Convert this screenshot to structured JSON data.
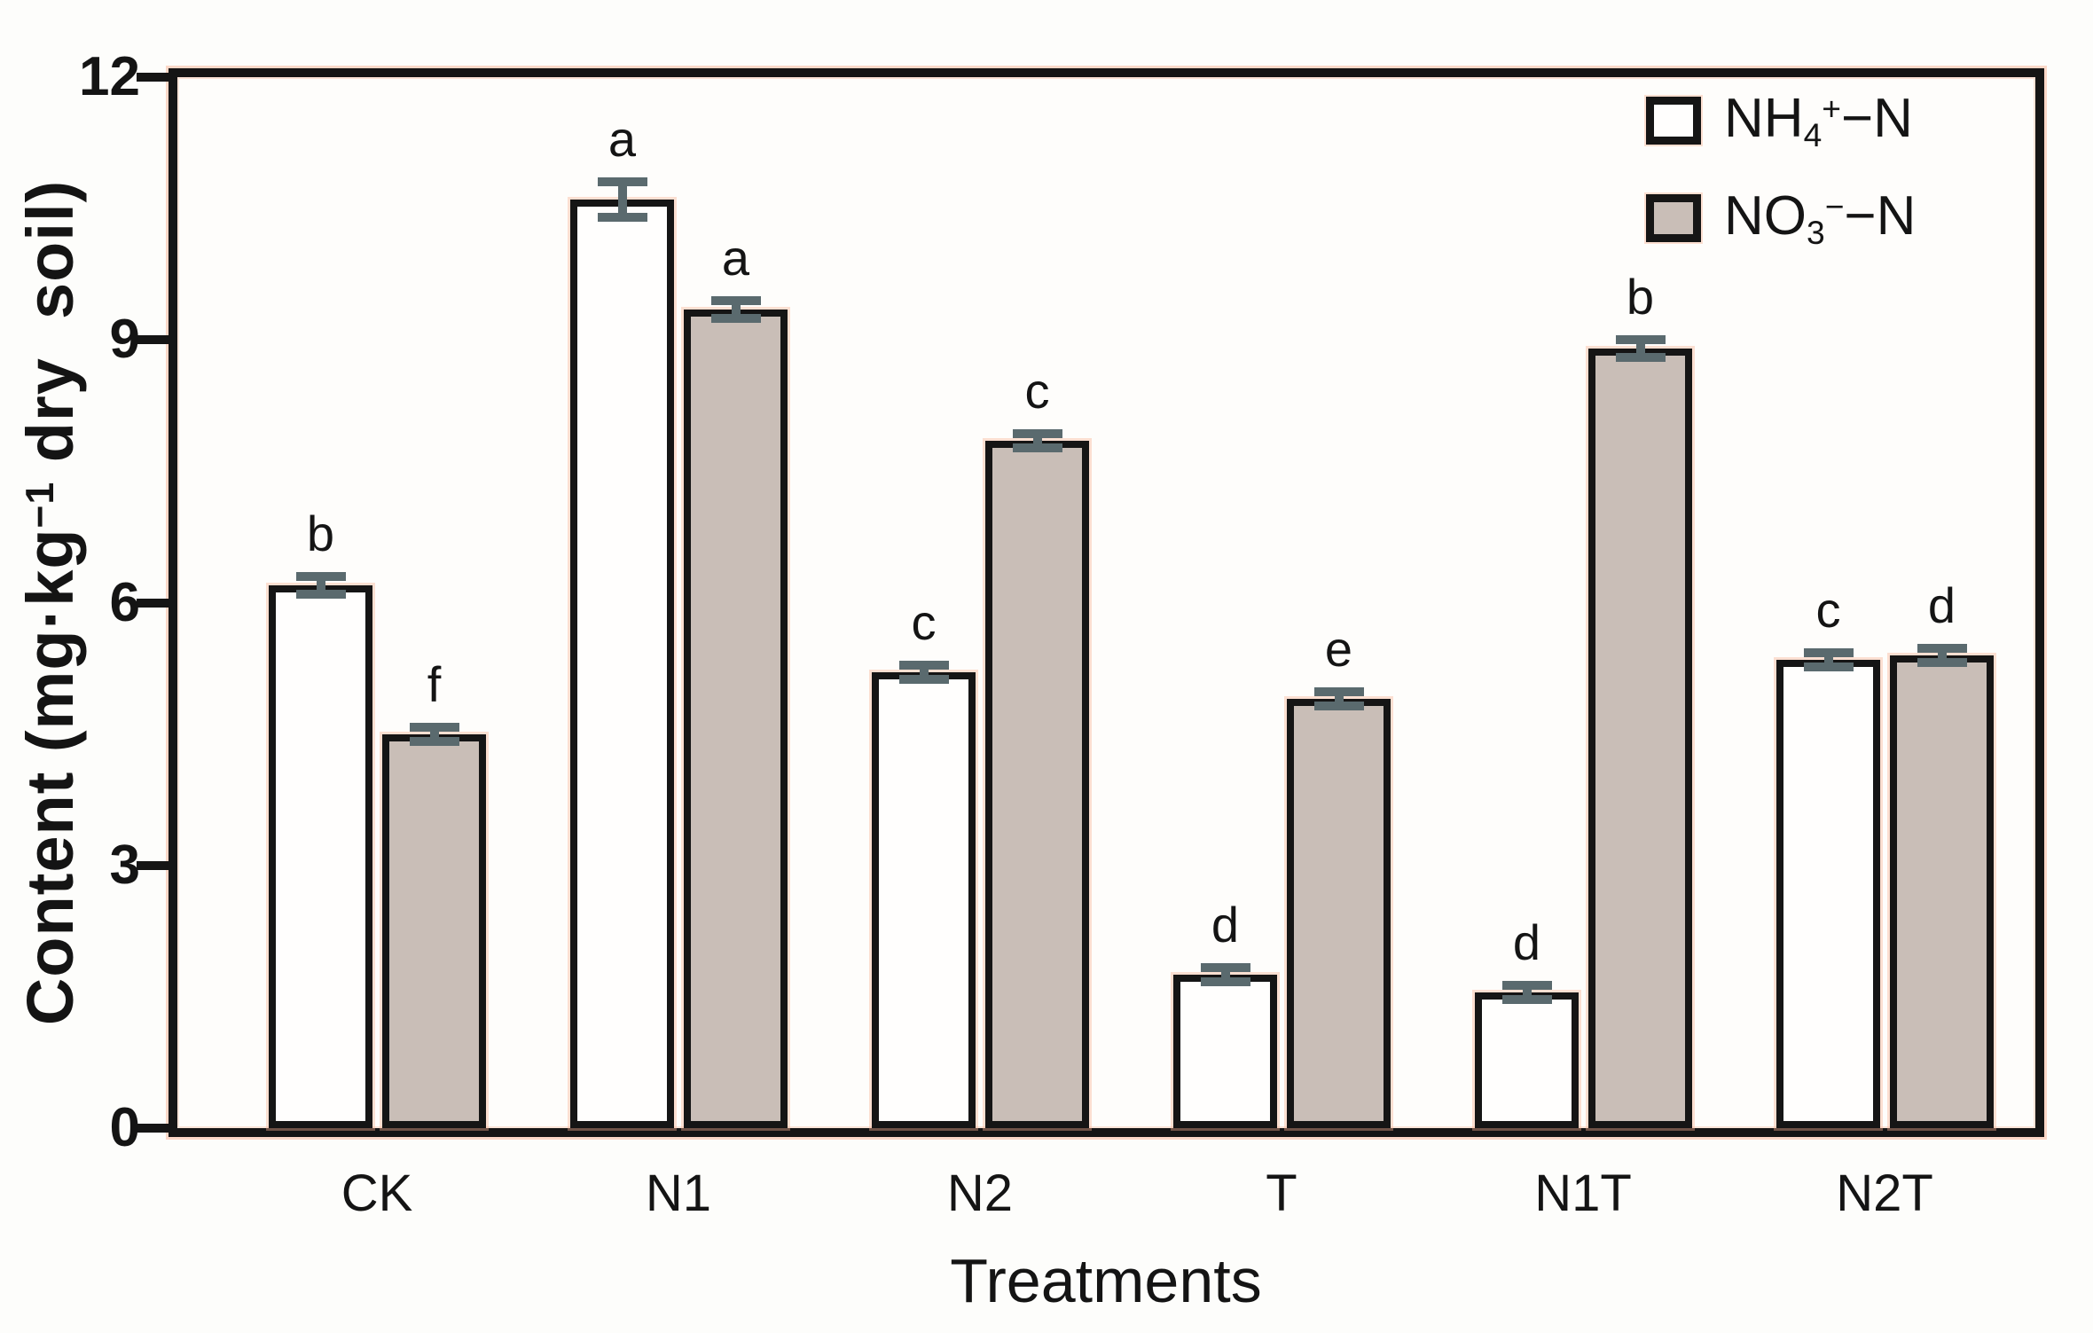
{
  "figure": {
    "y_axis": {
      "title_parts": {
        "prefix": "Content (mg·kg",
        "sup": "−1",
        "suffix": " dry  soil)"
      },
      "tick_labels": [
        "0",
        "3",
        "6",
        "9",
        "12"
      ]
    },
    "x_axis": {
      "title": "Treatments"
    },
    "legend": [
      {
        "key": "nh4",
        "label_parts": {
          "base": "NH",
          "sub": "4",
          "sup": "+",
          "suffix": "−N"
        },
        "fill": "#fffefd"
      },
      {
        "key": "no3",
        "label_parts": {
          "base": "NO",
          "sub": "3",
          "sup": "−",
          "suffix": "−N"
        },
        "fill": "#c9beb7"
      }
    ]
  },
  "chart_data": {
    "type": "bar",
    "title": "",
    "xlabel": "Treatments",
    "ylabel": "Content (mg·kg−1 dry soil)",
    "ylim": [
      0,
      12
    ],
    "yticks": [
      0,
      3,
      6,
      9,
      12
    ],
    "grid": false,
    "legend_position": "top-right-inside",
    "categories": [
      "CK",
      "N1",
      "N2",
      "T",
      "N1T",
      "N2T"
    ],
    "series": [
      {
        "name": "NH4+-N",
        "key": "nh4",
        "fill": "#fffefd",
        "values": [
          6.2,
          10.6,
          5.2,
          1.75,
          1.55,
          5.35
        ],
        "errors": [
          0.1,
          0.2,
          0.08,
          0.05,
          0.06,
          0.05
        ],
        "sig_letters": [
          "b",
          "a",
          "c",
          "d",
          "d",
          "c"
        ]
      },
      {
        "name": "NO3--N",
        "key": "no3",
        "fill": "#c9beb7",
        "values": [
          4.5,
          9.35,
          7.85,
          4.9,
          8.9,
          5.4
        ],
        "errors": [
          0.08,
          0.1,
          0.06,
          0.06,
          0.1,
          0.08
        ],
        "sig_letters": [
          "f",
          "a",
          "c",
          "e",
          "b",
          "d"
        ]
      }
    ],
    "colors": {
      "bar_border": "#151515",
      "axis": "#151515",
      "error_bar": "#5a6a6e",
      "nh4_fill": "#fffefd",
      "no3_fill": "#c9beb7",
      "halo": "#f9b294"
    }
  }
}
